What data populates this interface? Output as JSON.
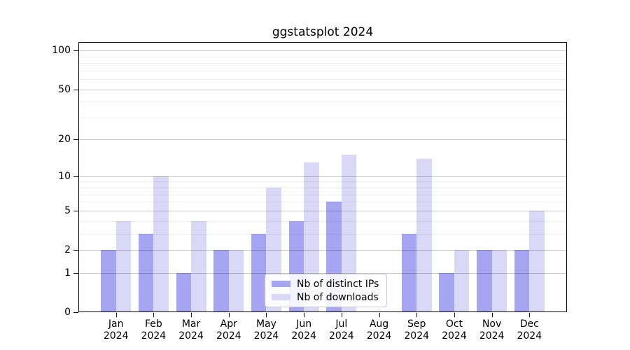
{
  "title": "ggstatsplot 2024",
  "chart_data": {
    "type": "bar",
    "title": "ggstatsplot 2024",
    "subtitle": "",
    "xlabel": "",
    "ylabel": "",
    "x_year": "2024",
    "categories": [
      "Jan",
      "Feb",
      "Mar",
      "Apr",
      "May",
      "Jun",
      "Jul",
      "Aug",
      "Sep",
      "Oct",
      "Nov",
      "Dec"
    ],
    "series": [
      {
        "name": "Nb of distinct IPs",
        "slug": "distinct-ips",
        "color": "#a5a5f2",
        "values": [
          2,
          3,
          1,
          2,
          3,
          4,
          6,
          0,
          3,
          1,
          2,
          2
        ]
      },
      {
        "name": "Nb of downloads",
        "slug": "downloads",
        "color": "#d9d9f7",
        "values": [
          4,
          10,
          4,
          2,
          8,
          13,
          15,
          0,
          14,
          2,
          2,
          5
        ]
      }
    ],
    "yscale": "log1p",
    "ylim": [
      0,
      117
    ],
    "yticks": [
      0,
      1,
      2,
      5,
      10,
      20,
      50,
      100
    ],
    "minor_gridlines": [
      3,
      4,
      6,
      7,
      8,
      9,
      30,
      40,
      60,
      70,
      80,
      90
    ],
    "grid": "on",
    "gridlines_above_bars": true,
    "legend_position": "lower center",
    "colors": {
      "axis": "#000000",
      "text": "#000000",
      "major_grid": "rgba(0,0,0,0.22)",
      "minor_grid": "rgba(0,0,0,0.07)",
      "legend_border": "#cccccc",
      "background": "#ffffff"
    }
  }
}
